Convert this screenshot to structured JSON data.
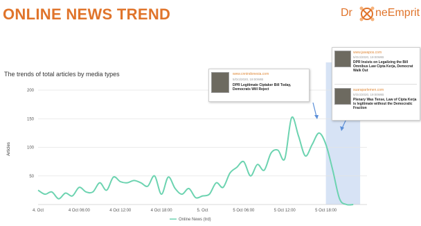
{
  "page": {
    "title": "ONLINE NEWS TREND",
    "logo_left": "Dr",
    "logo_right": "neEmprit",
    "brand_color": "#e0742b",
    "line_color": "#6cd3b0",
    "highlight_color": "#c9d9f2"
  },
  "chart_data": {
    "type": "line",
    "title": "The trends of total articles by media types",
    "xlabel": "",
    "ylabel": "Articles",
    "ylim": [
      0,
      200
    ],
    "yticks": [
      50,
      100,
      150,
      200
    ],
    "xtick_labels": [
      "4. Oct",
      "4 Oct 06:00",
      "4 Oct 12:00",
      "4 Oct 18:00",
      "5. Oct",
      "5 Oct 06:00",
      "5 Oct 12:00",
      "5 Oct 18:00"
    ],
    "x_hours": [
      0,
      1,
      2,
      3,
      4,
      5,
      6,
      7,
      8,
      9,
      10,
      11,
      12,
      13,
      14,
      15,
      16,
      17,
      18,
      19,
      20,
      21,
      22,
      23,
      24,
      25,
      26,
      27,
      28,
      29,
      30,
      31,
      32,
      33,
      34,
      35,
      36,
      37,
      38,
      39,
      40,
      41,
      42,
      43,
      44,
      45,
      46
    ],
    "series": [
      {
        "name": "Online News (trd)",
        "values": [
          25,
          18,
          22,
          10,
          20,
          15,
          30,
          22,
          22,
          38,
          25,
          48,
          40,
          38,
          42,
          38,
          32,
          50,
          18,
          48,
          28,
          18,
          28,
          12,
          15,
          18,
          38,
          30,
          55,
          65,
          75,
          50,
          70,
          60,
          90,
          95,
          80,
          152,
          120,
          85,
          105,
          125,
          105,
          60,
          10,
          0,
          0
        ]
      }
    ],
    "highlight_range": [
      "5 Oct 18:00",
      "5 Oct 23:00"
    ],
    "grid": true,
    "legend": "bottom"
  },
  "annotations": [
    {
      "source": "www.cnnindonesia.com",
      "date": "5/Oct/2020, 19:00WIB",
      "headline": "DPR Legitimate Ciptaker Bill Today, Democrats Will Reject"
    },
    {
      "source": "www.jawapos.com",
      "date": "5/Oct/2020, 19:00WIB",
      "headline": "DPR Insists on Legalizing the Bill Omnibus Law Cipta Kerja, Democrat Walk Out"
    },
    {
      "source": "suaraparlemen.com",
      "date": "5/Oct/2020, 19:00WIB",
      "headline": "Plenary Was Tense, Law of Cipta Kerja is legitimate without the Democratic Fraction"
    }
  ]
}
